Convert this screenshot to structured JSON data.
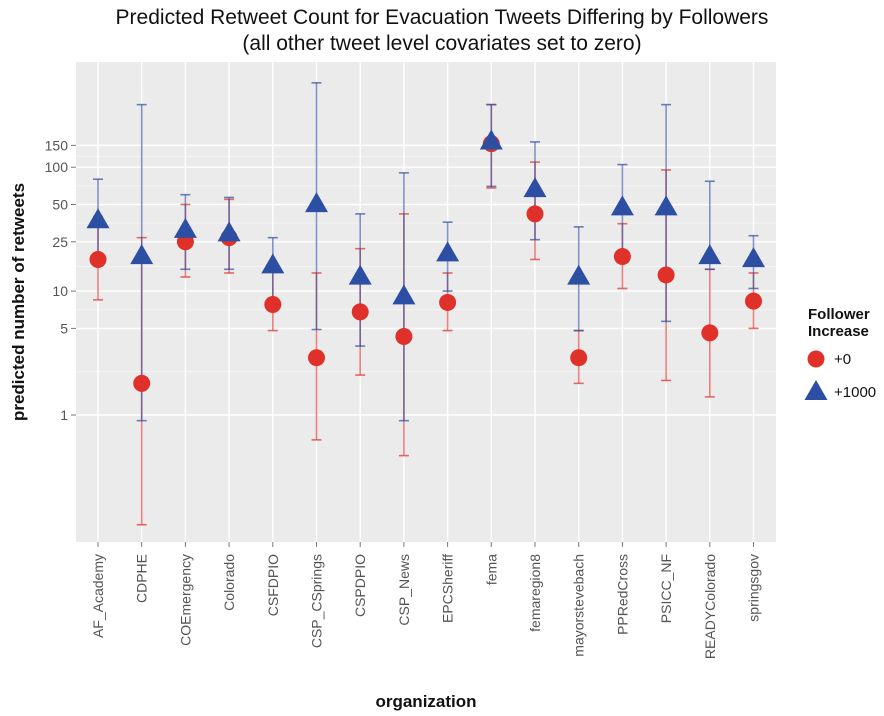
{
  "chart_data": {
    "type": "scatter",
    "title": "Predicted Retweet Count for Evacuation Tweets Differing by Followers",
    "subtitle": "(all other tweet level covariates set to zero)",
    "xlabel": "organization",
    "ylabel": "predicted number of retweets",
    "y_scale": "log",
    "y_ticks": [
      1,
      5,
      10,
      25,
      50,
      100,
      150
    ],
    "grid": true,
    "legend_position": "right",
    "legend_title": "Follower Increase",
    "categories": [
      "AF_Academy",
      "CDPHE",
      "COEmergency",
      "Colorado",
      "CSFDPIO",
      "CSP_CSprings",
      "CSPDPIO",
      "CSP_News",
      "EPCSheriff",
      "fema",
      "femaregion8",
      "mayorstevebach",
      "PPRedCross",
      "PSICC_NF",
      "READYColorado",
      "springsgov"
    ],
    "series": [
      {
        "name": "+0",
        "color": "#e0302a",
        "marker": "circle",
        "values": [
          18,
          1.8,
          25,
          27,
          7.8,
          2.9,
          6.8,
          4.3,
          8.1,
          155,
          42,
          2.9,
          19,
          13.5,
          4.6,
          8.3
        ],
        "lower": [
          8.5,
          0.13,
          13,
          14,
          4.8,
          0.63,
          2.1,
          0.47,
          4.8,
          68,
          18,
          1.8,
          10.5,
          1.9,
          1.4,
          5
        ],
        "upper": [
          40,
          27,
          50,
          55,
          15,
          14,
          22,
          42,
          14,
          320,
          110,
          4.8,
          35,
          95,
          15,
          14
        ]
      },
      {
        "name": "+1000",
        "color": "#2d4fa3",
        "marker": "triangle",
        "values": [
          37,
          19,
          31,
          29,
          16,
          50,
          13,
          9,
          20,
          160,
          66,
          13,
          47,
          47,
          19,
          18
        ],
        "lower": [
          16,
          0.9,
          15,
          15,
          8.3,
          4.9,
          3.6,
          0.9,
          10,
          70,
          26,
          4.8,
          18,
          5.7,
          15,
          10.5
        ],
        "upper": [
          80,
          320,
          60,
          57,
          27,
          480,
          42,
          90,
          36,
          320,
          160,
          33,
          105,
          320,
          77,
          28
        ]
      }
    ]
  }
}
